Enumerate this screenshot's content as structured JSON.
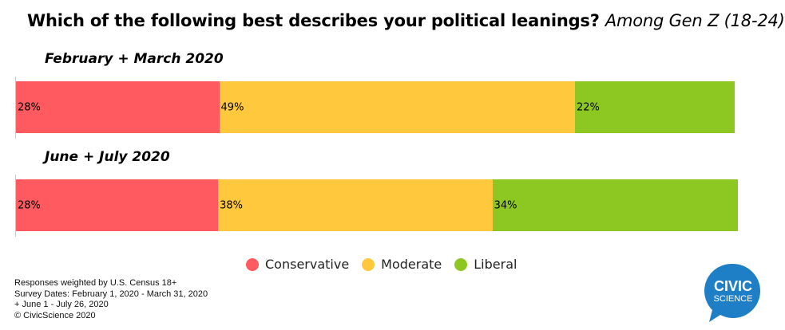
{
  "title": {
    "main": "Which of the following best describes your political leanings?",
    "subtitle": "Among Gen Z (18-24)"
  },
  "chart_data": {
    "type": "bar",
    "orientation": "horizontal-stacked",
    "categories": [
      "February + March 2020",
      "June + July 2020"
    ],
    "series": [
      {
        "name": "Conservative",
        "color": "#FF5A5F",
        "values": [
          28,
          28
        ],
        "labels": [
          "28%",
          "28%"
        ]
      },
      {
        "name": "Moderate",
        "color": "#FFC83D",
        "values": [
          49,
          38
        ],
        "labels": [
          "49%",
          "38%"
        ]
      },
      {
        "name": "Liberal",
        "color": "#8CC821",
        "values": [
          22,
          34
        ],
        "labels": [
          "22%",
          "34%"
        ]
      }
    ],
    "xlim": [
      0,
      100
    ],
    "grid": false,
    "legend_position": "bottom"
  },
  "footnote": [
    "Responses weighted by U.S. Census 18+",
    "Survey Dates: February 1, 2020 - March 31, 2020",
    "+ June 1 - July 26, 2020",
    "© CivicScience 2020"
  ],
  "logo": {
    "line1": "CIVIC",
    "line2": "SCIENCE",
    "color": "#1E7FC6"
  }
}
